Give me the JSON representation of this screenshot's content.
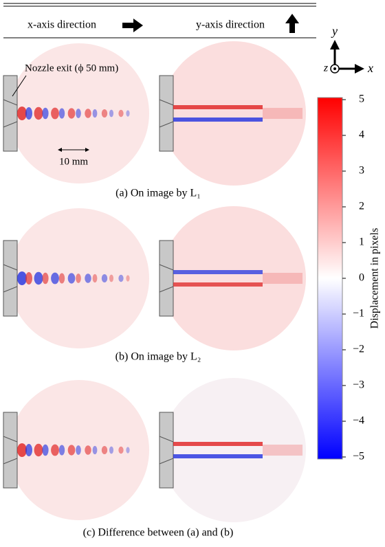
{
  "header": {
    "left": "x-axis direction",
    "right": "y-axis direction"
  },
  "annotations": {
    "nozzle": "Nozzle exit (ϕ 50 mm)",
    "scale": "10 mm"
  },
  "panels": [
    {
      "caption": "(a) On image by L₁"
    },
    {
      "caption": "(b) On image by L₂"
    },
    {
      "caption": "(c) Difference between (a) and (b)"
    }
  ],
  "axes_indicator": {
    "y": "y",
    "z": "z",
    "x": "x"
  },
  "colorbar": {
    "label": "Displacement in pixels",
    "lim": [
      -5,
      5
    ],
    "ticks": [
      5,
      4,
      3,
      2,
      1,
      0,
      {
        "value": -1,
        "label": "−1"
      },
      {
        "value": -2,
        "label": "−2"
      },
      {
        "value": -3,
        "label": "−3"
      },
      {
        "value": -4,
        "label": "−4"
      },
      {
        "value": -5,
        "label": "−5"
      }
    ]
  }
}
